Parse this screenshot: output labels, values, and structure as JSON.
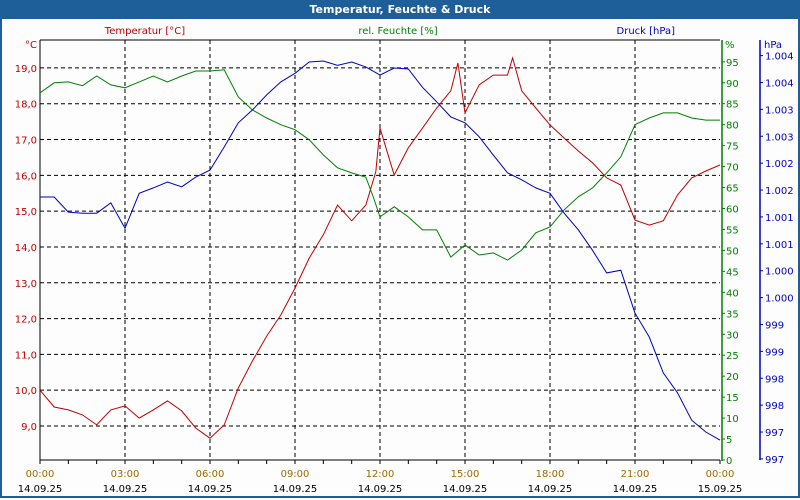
{
  "window": {
    "title": "Temperatur, Feuchte & Druck"
  },
  "chart_data": {
    "type": "line",
    "title": "Temperatur, Feuchte & Druck",
    "x_ticks": [
      {
        "time": "00:00",
        "date": "14.09.25",
        "h": 0
      },
      {
        "time": "03:00",
        "date": "14.09.25",
        "h": 3
      },
      {
        "time": "06:00",
        "date": "14.09.25",
        "h": 6
      },
      {
        "time": "09:00",
        "date": "14.09.25",
        "h": 9
      },
      {
        "time": "12:00",
        "date": "14.09.25",
        "h": 12
      },
      {
        "time": "15:00",
        "date": "14.09.25",
        "h": 15
      },
      {
        "time": "18:00",
        "date": "14.09.25",
        "h": 18
      },
      {
        "time": "21:00",
        "date": "14.09.25",
        "h": 21
      },
      {
        "time": "00:00",
        "date": "15.09.25",
        "h": 24
      }
    ],
    "xlim_hours": [
      0,
      24
    ],
    "grid": true,
    "axes": {
      "temperature": {
        "label": "Temperatur [°C]",
        "unit": "°C",
        "ylim": [
          8.05,
          19.78
        ],
        "color": "#c00000",
        "ticks": [
          {
            "v": 19,
            "label": "19,0"
          },
          {
            "v": 18,
            "label": "18,0"
          },
          {
            "v": 17,
            "label": "17,0"
          },
          {
            "v": 16,
            "label": "16,0"
          },
          {
            "v": 15,
            "label": "15,0"
          },
          {
            "v": 14,
            "label": "14,0"
          },
          {
            "v": 13,
            "label": "13,0"
          },
          {
            "v": 12,
            "label": "12,0"
          },
          {
            "v": 11,
            "label": "11,0"
          },
          {
            "v": 10,
            "label": "10,0"
          },
          {
            "v": 9,
            "label": "9,0"
          }
        ]
      },
      "humidity": {
        "label": "rel. Feuchte [%]",
        "unit": "%",
        "ylim": [
          0,
          100.2
        ],
        "color": "#008000",
        "ticks": [
          {
            "v": 95,
            "label": "95"
          },
          {
            "v": 90,
            "label": "90"
          },
          {
            "v": 85,
            "label": "85"
          },
          {
            "v": 80,
            "label": "80"
          },
          {
            "v": 75,
            "label": "75"
          },
          {
            "v": 70,
            "label": "70"
          },
          {
            "v": 65,
            "label": "65"
          },
          {
            "v": 60,
            "label": "60"
          },
          {
            "v": 55,
            "label": "55"
          },
          {
            "v": 50,
            "label": "50"
          },
          {
            "v": 45,
            "label": "45"
          },
          {
            "v": 40,
            "label": "40"
          },
          {
            "v": 35,
            "label": "35"
          },
          {
            "v": 30,
            "label": "30"
          },
          {
            "v": 25,
            "label": "25"
          },
          {
            "v": 20,
            "label": "20"
          },
          {
            "v": 15,
            "label": "15"
          },
          {
            "v": 10,
            "label": "10"
          },
          {
            "v": 5,
            "label": "5"
          },
          {
            "v": 0,
            "label": "0"
          }
        ]
      },
      "pressure": {
        "label": "Druck [hPa]",
        "unit": "hPa",
        "ylim": [
          996.78,
          1004.59
        ],
        "color": "#0000c0",
        "ticks": [
          {
            "v": 1004.3,
            "label": "1.004"
          },
          {
            "v": 1003.8,
            "label": "1.004"
          },
          {
            "v": 1003.3,
            "label": "1.003"
          },
          {
            "v": 1002.8,
            "label": "1.003"
          },
          {
            "v": 1002.3,
            "label": "1.002"
          },
          {
            "v": 1001.8,
            "label": "1.002"
          },
          {
            "v": 1001.3,
            "label": "1.001"
          },
          {
            "v": 1000.8,
            "label": "1.001"
          },
          {
            "v": 1000.3,
            "label": "1.000"
          },
          {
            "v": 999.8,
            "label": "1.000"
          },
          {
            "v": 999.3,
            "label": "999"
          },
          {
            "v": 998.8,
            "label": "999"
          },
          {
            "v": 998.3,
            "label": "998"
          },
          {
            "v": 997.8,
            "label": "998"
          },
          {
            "v": 997.3,
            "label": "997"
          },
          {
            "v": 996.8,
            "label": "997"
          }
        ]
      }
    },
    "series": [
      {
        "name": "Temperatur [°C]",
        "axis": "temperature",
        "color": "#c00000",
        "x": [
          0,
          0.5,
          1,
          1.5,
          2,
          2.5,
          3,
          3.5,
          4,
          4.5,
          5,
          5.5,
          6,
          6.5,
          7,
          7.5,
          8,
          8.5,
          9,
          9.5,
          10,
          10.5,
          11,
          11.5,
          11.85,
          12,
          12.5,
          13,
          13.5,
          14,
          14.5,
          14.75,
          15,
          15.5,
          16,
          16.5,
          16.68,
          17,
          17.5,
          18,
          18.5,
          19,
          19.5,
          20,
          20.5,
          21,
          21.5,
          22,
          22.5,
          23,
          23.5,
          24
        ],
        "y": [
          10.0,
          9.53,
          9.45,
          9.31,
          9.03,
          9.45,
          9.56,
          9.22,
          9.45,
          9.7,
          9.42,
          8.94,
          8.66,
          9.03,
          10.06,
          10.82,
          11.51,
          12.1,
          12.85,
          13.69,
          14.34,
          15.17,
          14.73,
          15.17,
          16.1,
          17.32,
          16.01,
          16.77,
          17.32,
          17.88,
          18.36,
          19.14,
          17.74,
          18.53,
          18.8,
          18.8,
          19.28,
          18.36,
          17.88,
          17.41,
          17.04,
          16.68,
          16.35,
          15.93,
          15.73,
          14.75,
          14.61,
          14.73,
          15.45,
          15.93,
          16.12,
          16.29
        ]
      },
      {
        "name": "rel. Feuchte [%]",
        "axis": "humidity",
        "color": "#008000",
        "x": [
          0,
          0.5,
          1,
          1.5,
          2,
          2.5,
          3,
          3.5,
          4,
          4.5,
          5,
          5.5,
          6,
          6.5,
          7,
          7.5,
          8,
          8.5,
          9,
          9.5,
          10,
          10.5,
          11,
          11.5,
          11.75,
          12,
          12.5,
          13,
          13.5,
          14,
          14.5,
          15,
          15.5,
          16,
          16.5,
          17,
          17.5,
          18,
          18.5,
          19,
          19.5,
          20,
          20.5,
          21,
          21.5,
          22,
          22.5,
          23,
          23.5,
          24
        ],
        "y": [
          87.6,
          90.0,
          90.2,
          89.3,
          91.6,
          89.5,
          88.8,
          90.2,
          91.6,
          90.2,
          91.6,
          92.8,
          92.8,
          93.1,
          86.6,
          83.5,
          81.6,
          80.0,
          78.8,
          76.4,
          72.8,
          69.7,
          68.5,
          67.5,
          63.0,
          58.0,
          60.4,
          58.0,
          54.9,
          54.9,
          48.4,
          51.3,
          48.9,
          49.4,
          47.7,
          50.1,
          54.2,
          55.6,
          59.7,
          62.8,
          64.9,
          68.5,
          72.3,
          80.0,
          81.6,
          82.8,
          82.8,
          81.6,
          81.1,
          81.1
        ]
      },
      {
        "name": "Druck [hPa]",
        "axis": "pressure",
        "color": "#0000c0",
        "x": [
          0,
          0.5,
          1,
          1.5,
          2,
          2.5,
          3,
          3.5,
          4,
          4.5,
          5,
          5.5,
          6,
          6.5,
          7,
          7.5,
          8,
          8.5,
          9,
          9.5,
          10,
          10.5,
          11,
          11.5,
          12,
          12.5,
          13,
          13.5,
          14,
          14.5,
          15,
          15.5,
          16,
          16.5,
          17,
          17.5,
          18,
          18.5,
          19,
          19.5,
          20,
          20.5,
          21,
          21.5,
          22,
          22.5,
          23,
          23.5,
          24
        ],
        "y": [
          1001.67,
          1001.67,
          1001.39,
          1001.37,
          1001.37,
          1001.56,
          1001.09,
          1001.74,
          1001.84,
          1001.95,
          1001.86,
          1002.04,
          1002.17,
          1002.6,
          1003.05,
          1003.29,
          1003.57,
          1003.81,
          1003.97,
          1004.18,
          1004.2,
          1004.12,
          1004.18,
          1004.09,
          1003.94,
          1004.07,
          1004.05,
          1003.71,
          1003.44,
          1003.16,
          1003.05,
          1002.79,
          1002.45,
          1002.12,
          1001.99,
          1001.84,
          1001.74,
          1001.37,
          1001.06,
          1000.68,
          1000.26,
          1000.31,
          999.51,
          999.07,
          998.4,
          998.03,
          997.52,
          997.3,
          997.15
        ]
      }
    ]
  }
}
